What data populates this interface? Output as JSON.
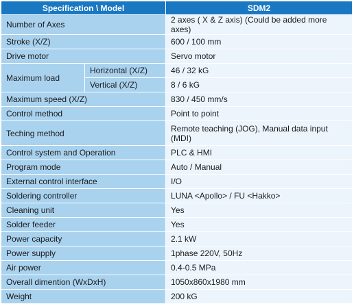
{
  "header": {
    "col1": "Specification \\ Model",
    "col2": "SDM2"
  },
  "rows": [
    {
      "label": "Number of Axes",
      "value": "2 axes ( X & Z axis) (Could be added more axes)"
    },
    {
      "label": "Stroke (X/Z)",
      "value": "600 / 100 mm"
    },
    {
      "label": "Drive motor",
      "value": "Servo motor"
    },
    {
      "label": "Maximum load",
      "sub": [
        {
          "label": "Horizontal  (X/Z)",
          "value": "46 / 32 kG"
        },
        {
          "label": "Vertical  (X/Z)",
          "value": "8 / 6 kG"
        }
      ]
    },
    {
      "label": "Maximum speed (X/Z)",
      "value": "830 / 450 mm/s"
    },
    {
      "label": "Control method",
      "value": "Point to point"
    },
    {
      "label": "Teching method",
      "value": "Remote teaching (JOG), Manual data input (MDI)"
    },
    {
      "label": "Control system and Operation",
      "value": "PLC & HMI"
    },
    {
      "label": "Program mode",
      "value": "Auto / Manual"
    },
    {
      "label": "External control interface",
      "value": "I/O"
    },
    {
      "label": "Soldering controller",
      "value": "LUNA <Apollo> / FU <Hakko>"
    },
    {
      "label": "Cleaning unit",
      "value": "Yes"
    },
    {
      "label": "Solder feeder",
      "value": "Yes"
    },
    {
      "label": "Power capacity",
      "value": "2.1 kW"
    },
    {
      "label": "Power supply",
      "value": "1phase 220V, 50Hz"
    },
    {
      "label": "Air power",
      "value": "0.4-0.5 MPa"
    },
    {
      "label": "Overall dimention (WxDxH)",
      "value": "1050x860x1980 mm"
    },
    {
      "label": "Weight",
      "value": "200 kG"
    }
  ],
  "colors": {
    "header_bg": "#1a78c2",
    "label_bg": "#a9d2ef",
    "value_bg": "#ecf5fc"
  }
}
